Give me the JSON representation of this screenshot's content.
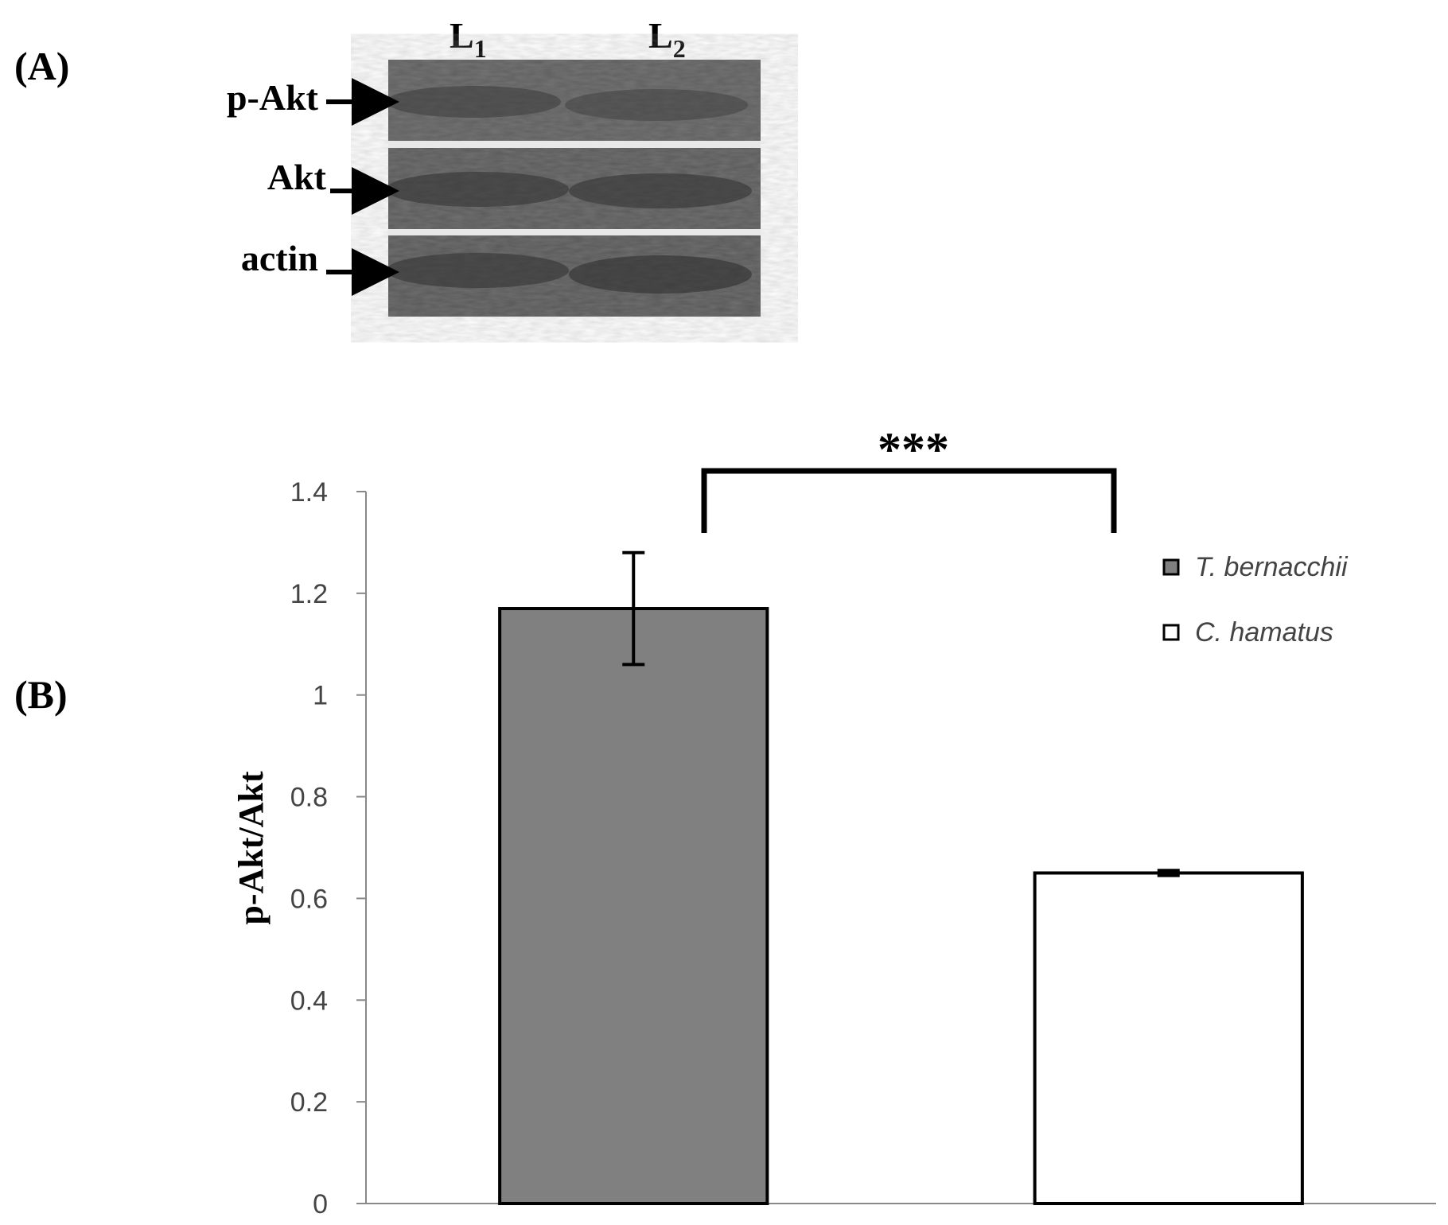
{
  "panel_a": {
    "label": "(A)",
    "lanes": [
      {
        "letter": "L",
        "sub": "1"
      },
      {
        "letter": "L",
        "sub": "2"
      }
    ],
    "bands": [
      "p-Akt",
      "Akt",
      "actin"
    ]
  },
  "panel_b": {
    "label": "(B)",
    "significance": "***"
  },
  "chart_data": {
    "type": "bar",
    "title": "",
    "xlabel": "",
    "ylabel": "p-Akt/Akt",
    "ylim": [
      0,
      1.4
    ],
    "yticks": [
      "0",
      "0.2",
      "0.4",
      "0.6",
      "0.8",
      "1",
      "1.2",
      "1.4"
    ],
    "grid": false,
    "legend_position": "right",
    "series": [
      {
        "name": "T. bernacchii",
        "value": 1.17,
        "error": 0.11,
        "color": "#808080"
      },
      {
        "name": "C. hamatus",
        "value": 0.65,
        "error": 0.005,
        "color": "#ffffff"
      }
    ]
  }
}
